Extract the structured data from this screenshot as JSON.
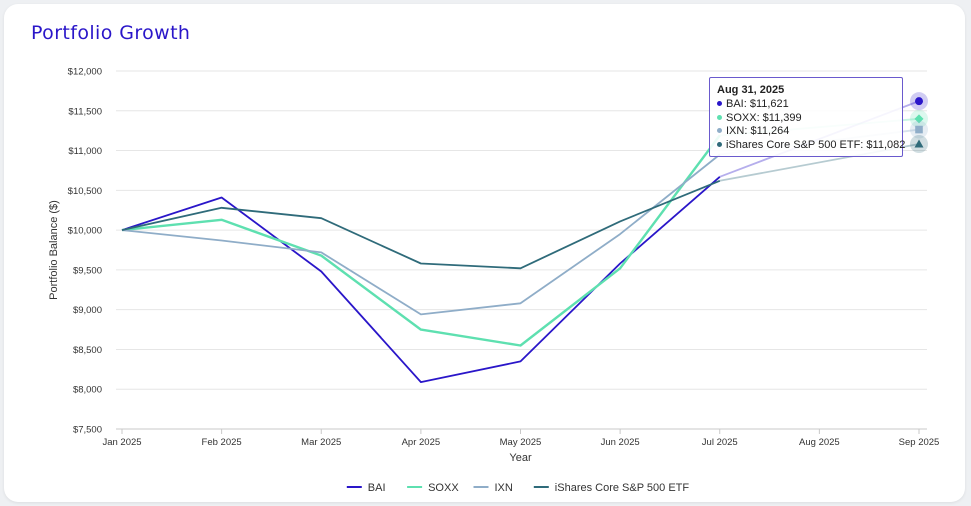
{
  "title": "Portfolio Growth",
  "chart_data": {
    "type": "line",
    "title": "Portfolio Growth",
    "xlabel": "Year",
    "ylabel": "Portfolio Balance ($)",
    "categories": [
      "Jan 2025",
      "Feb 2025",
      "Mar 2025",
      "Apr 2025",
      "May 2025",
      "Jun 2025",
      "Jul 2025",
      "Aug 2025",
      "Sep 2025"
    ],
    "y_ticks": [
      "$7,500",
      "$8,000",
      "$8,500",
      "$9,000",
      "$9,500",
      "$10,000",
      "$10,500",
      "$11,000",
      "$11,500",
      "$12,000"
    ],
    "ylim": [
      7500,
      12000
    ],
    "grid": true,
    "legend_position": "bottom",
    "series": [
      {
        "name": "BAI",
        "color": "#2a16c9",
        "values": [
          10000,
          10410,
          9480,
          8090,
          8350,
          9580,
          10670,
          null,
          11621
        ]
      },
      {
        "name": "SOXX",
        "color": "#5ee0b0",
        "values": [
          10000,
          10130,
          9680,
          8750,
          8550,
          9520,
          11190,
          null,
          11399
        ]
      },
      {
        "name": "IXN",
        "color": "#8fadc8",
        "values": [
          10000,
          9870,
          9720,
          8940,
          9080,
          9950,
          10950,
          null,
          11264
        ]
      },
      {
        "name": "iShares Core S&P 500 ETF",
        "color": "#2f6b7a",
        "values": [
          10000,
          10280,
          10150,
          9580,
          9520,
          10110,
          10620,
          null,
          11082
        ]
      }
    ],
    "tooltip": {
      "date": "Aug 31, 2025",
      "rows": [
        {
          "text": "BAI: $11,621",
          "color": "#2a16c9"
        },
        {
          "text": "SOXX: $11,399",
          "color": "#5ee0b0"
        },
        {
          "text": "IXN: $11,264",
          "color": "#8fadc8"
        },
        {
          "text": "iShares Core S&P 500 ETF: $11,082",
          "color": "#2f6b7a"
        }
      ]
    }
  }
}
